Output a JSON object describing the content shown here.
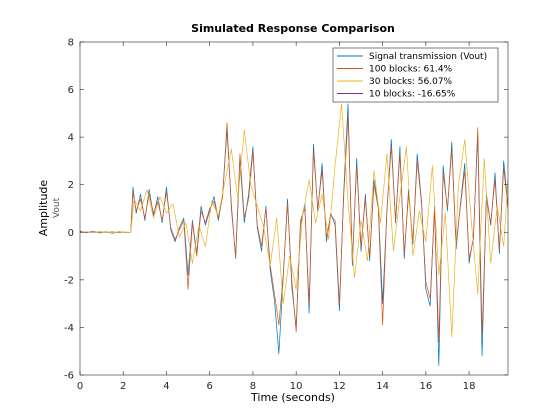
{
  "chart_data": {
    "type": "line",
    "title": "Simulated Response Comparison",
    "xlabel": "Time (seconds)",
    "ylabel": "Amplitude",
    "ylabel_sub": "Vout",
    "xlim": [
      0,
      19.8
    ],
    "ylim": [
      -6,
      8
    ],
    "xticks": [
      0,
      2,
      4,
      6,
      8,
      10,
      12,
      14,
      16,
      18
    ],
    "yticks": [
      -6,
      -4,
      -2,
      0,
      2,
      4,
      6,
      8
    ],
    "grid": false,
    "legend_position": "top-right",
    "series": [
      {
        "name": "Signal transmission (Vout)",
        "color": "#0072BD",
        "x": [
          0,
          0.3,
          0.6,
          0.9,
          1.2,
          1.5,
          1.8,
          2.1,
          2.35,
          2.45,
          2.6,
          2.8,
          3.0,
          3.2,
          3.4,
          3.6,
          3.8,
          4.0,
          4.2,
          4.4,
          4.6,
          4.8,
          5.0,
          5.2,
          5.4,
          5.6,
          5.8,
          6.0,
          6.2,
          6.4,
          6.6,
          6.8,
          7.0,
          7.2,
          7.4,
          7.6,
          7.8,
          8.0,
          8.2,
          8.4,
          8.6,
          8.8,
          9.0,
          9.2,
          9.4,
          9.6,
          9.8,
          10.0,
          10.2,
          10.4,
          10.6,
          10.8,
          11.0,
          11.2,
          11.4,
          11.6,
          11.8,
          12.0,
          12.2,
          12.4,
          12.6,
          12.8,
          13.0,
          13.2,
          13.4,
          13.6,
          13.8,
          14.0,
          14.2,
          14.4,
          14.6,
          14.8,
          15.0,
          15.2,
          15.4,
          15.6,
          15.8,
          16.0,
          16.2,
          16.4,
          16.6,
          16.8,
          17.0,
          17.2,
          17.4,
          17.6,
          17.8,
          18.0,
          18.2,
          18.4,
          18.6,
          18.8,
          19.0,
          19.2,
          19.4,
          19.6,
          19.8
        ],
        "y": [
          0.05,
          -0.02,
          0.04,
          -0.03,
          0.02,
          -0.04,
          0.03,
          -0.01,
          0.0,
          1.9,
          0.8,
          1.6,
          0.5,
          1.8,
          0.7,
          1.5,
          0.4,
          1.9,
          0.1,
          -0.4,
          0.2,
          0.6,
          -1.8,
          0.5,
          -0.9,
          1.1,
          0.3,
          0.9,
          1.5,
          0.5,
          1.6,
          4.3,
          1.2,
          -1.1,
          3.1,
          0.4,
          1.6,
          3.6,
          0.2,
          -0.8,
          1.1,
          -1.6,
          -2.9,
          -5.1,
          -1.9,
          1.4,
          -2.3,
          -4.0,
          0.3,
          1.2,
          -3.4,
          3.7,
          0.9,
          2.9,
          -0.4,
          0.8,
          0.3,
          -3.3,
          1.7,
          5.4,
          -1.4,
          3.1,
          -0.8,
          1.6,
          -1.2,
          2.2,
          1.1,
          -3.0,
          0.9,
          3.9,
          0.4,
          3.6,
          -1.1,
          1.8,
          -0.5,
          3.3,
          1.3,
          -2.4,
          -3.1,
          1.1,
          -5.6,
          2.8,
          0.9,
          3.8,
          -0.7,
          1.2,
          2.9,
          -1.3,
          -0.2,
          4.1,
          -5.2,
          1.6,
          0.3,
          2.5,
          -0.9,
          3.0,
          1.1
        ]
      },
      {
        "name": "100 blocks: 61.4%",
        "color": "#D95319",
        "x": [
          0,
          0.3,
          0.6,
          0.9,
          1.2,
          1.5,
          1.8,
          2.1,
          2.35,
          2.45,
          2.6,
          2.8,
          3.0,
          3.2,
          3.4,
          3.6,
          3.8,
          4.0,
          4.2,
          4.4,
          4.6,
          4.8,
          5.0,
          5.2,
          5.4,
          5.6,
          5.8,
          6.0,
          6.2,
          6.4,
          6.6,
          6.8,
          7.0,
          7.2,
          7.4,
          7.6,
          7.8,
          8.0,
          8.2,
          8.4,
          8.6,
          8.8,
          9.0,
          9.2,
          9.4,
          9.6,
          9.8,
          10.0,
          10.2,
          10.4,
          10.6,
          10.8,
          11.0,
          11.2,
          11.4,
          11.6,
          11.8,
          12.0,
          12.2,
          12.4,
          12.6,
          12.8,
          13.0,
          13.2,
          13.4,
          13.6,
          13.8,
          14.0,
          14.2,
          14.4,
          14.6,
          14.8,
          15.0,
          15.2,
          15.4,
          15.6,
          15.8,
          16.0,
          16.2,
          16.4,
          16.6,
          16.8,
          17.0,
          17.2,
          17.4,
          17.6,
          17.8,
          18.0,
          18.2,
          18.4,
          18.6,
          18.8,
          19.0,
          19.2,
          19.4,
          19.6,
          19.8
        ],
        "y": [
          0.02,
          0.01,
          -0.02,
          0.03,
          -0.01,
          0.02,
          -0.02,
          0.01,
          0.0,
          1.7,
          0.9,
          1.4,
          0.6,
          1.6,
          0.8,
          1.3,
          0.5,
          1.7,
          0.2,
          -0.3,
          0.1,
          0.5,
          -2.4,
          0.4,
          -1.0,
          0.9,
          0.4,
          1.0,
          1.3,
          0.6,
          1.5,
          4.6,
          1.0,
          -1.0,
          3.3,
          0.6,
          1.4,
          3.4,
          0.3,
          -0.6,
          1.0,
          -1.4,
          -2.6,
          -3.9,
          -1.8,
          1.2,
          -2.0,
          -4.2,
          0.5,
          1.0,
          -3.0,
          3.4,
          1.0,
          2.6,
          -0.2,
          0.7,
          0.5,
          -3.0,
          1.5,
          4.9,
          -1.2,
          2.8,
          -0.6,
          1.4,
          -1.0,
          2.0,
          1.0,
          -3.9,
          1.0,
          3.6,
          0.5,
          3.3,
          -0.9,
          1.6,
          -0.4,
          3.0,
          1.2,
          -2.1,
          -2.8,
          1.0,
          -4.6,
          2.5,
          1.0,
          3.5,
          -0.5,
          1.1,
          2.6,
          -1.1,
          -0.3,
          4.4,
          -4.3,
          1.4,
          0.4,
          2.2,
          -0.7,
          2.7,
          1.0
        ]
      },
      {
        "name": "30 blocks: 56.07%",
        "color": "#EDB120",
        "x": [
          0,
          0.3,
          0.6,
          0.9,
          1.2,
          1.5,
          1.8,
          2.1,
          2.35,
          2.5,
          2.8,
          3.1,
          3.4,
          3.7,
          4.0,
          4.3,
          4.6,
          4.9,
          5.2,
          5.5,
          5.8,
          6.1,
          6.4,
          6.7,
          7.0,
          7.3,
          7.6,
          7.9,
          8.2,
          8.5,
          8.8,
          9.1,
          9.4,
          9.7,
          10.0,
          10.3,
          10.6,
          10.9,
          11.2,
          11.5,
          11.8,
          12.1,
          12.4,
          12.7,
          13.0,
          13.3,
          13.6,
          13.9,
          14.2,
          14.5,
          14.8,
          15.1,
          15.4,
          15.7,
          16.0,
          16.3,
          16.6,
          16.9,
          17.2,
          17.5,
          17.8,
          18.1,
          18.4,
          18.7,
          19.0,
          19.3,
          19.6,
          19.8
        ],
        "y": [
          0.0,
          0.03,
          -0.02,
          0.02,
          0.0,
          -0.02,
          0.02,
          0.0,
          0.0,
          1.4,
          0.9,
          1.8,
          0.6,
          1.5,
          0.8,
          1.2,
          -0.2,
          0.4,
          -1.3,
          0.3,
          -0.6,
          1.3,
          0.7,
          2.1,
          3.5,
          1.4,
          4.3,
          2.0,
          1.1,
          0.2,
          -1.4,
          0.6,
          -3.0,
          -1.0,
          -2.4,
          0.7,
          2.2,
          0.4,
          1.6,
          -0.3,
          2.8,
          5.4,
          1.3,
          -1.9,
          0.5,
          -1.2,
          2.6,
          0.4,
          3.3,
          -0.8,
          1.5,
          3.6,
          -1.0,
          0.9,
          -0.4,
          2.8,
          -1.8,
          0.8,
          -4.4,
          1.9,
          3.9,
          0.5,
          -2.6,
          3.1,
          -1.3,
          1.1,
          -0.6,
          2.3
        ]
      },
      {
        "name": "10 blocks: -16.65%",
        "color": "#7E2F8E",
        "x": [],
        "y": []
      }
    ]
  }
}
